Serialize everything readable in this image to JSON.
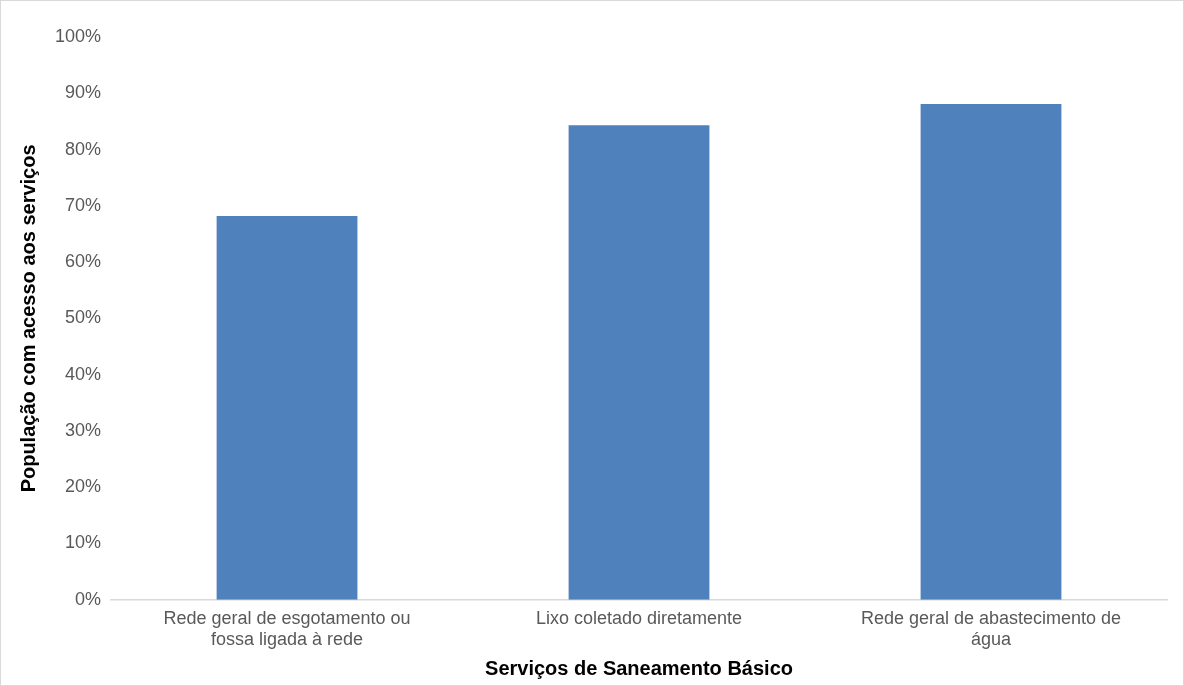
{
  "chart_data": {
    "type": "bar",
    "xlabel": "Serviços de Saneamento Básico",
    "ylabel": "População com acesso aos serviços",
    "categories": [
      "Rede geral de esgotamento ou fossa ligada à rede",
      "Lixo coletado diretamente",
      "Rede geral de abastecimento de água"
    ],
    "values": [
      68.2,
      84.3,
      88.1
    ],
    "color": "#4f81bd",
    "ylim": [
      0,
      100
    ],
    "yticks": [
      {
        "value": 0,
        "label": "0%"
      },
      {
        "value": 10,
        "label": "10%"
      },
      {
        "value": 20,
        "label": "20%"
      },
      {
        "value": 30,
        "label": "30%"
      },
      {
        "value": 40,
        "label": "40%"
      },
      {
        "value": 50,
        "label": "50%"
      },
      {
        "value": 60,
        "label": "60%"
      },
      {
        "value": 70,
        "label": "70%"
      },
      {
        "value": 80,
        "label": "80%"
      },
      {
        "value": 90,
        "label": "90%"
      },
      {
        "value": 100,
        "label": "100%"
      }
    ],
    "grid": false,
    "legend": false
  }
}
